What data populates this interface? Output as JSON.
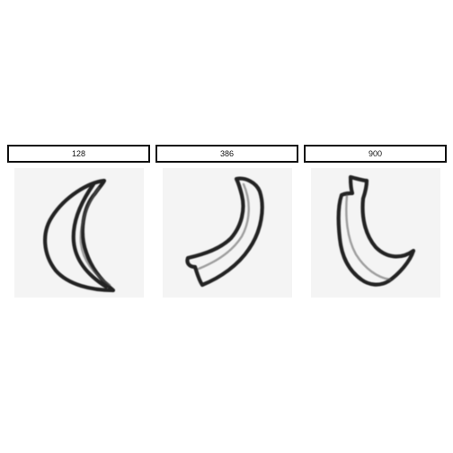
{
  "gallery": {
    "items": [
      {
        "label": "128",
        "icon": "banana-sketch-icon"
      },
      {
        "label": "386",
        "icon": "banana-sketch-icon"
      },
      {
        "label": "900",
        "icon": "banana-sketch-icon"
      }
    ]
  }
}
